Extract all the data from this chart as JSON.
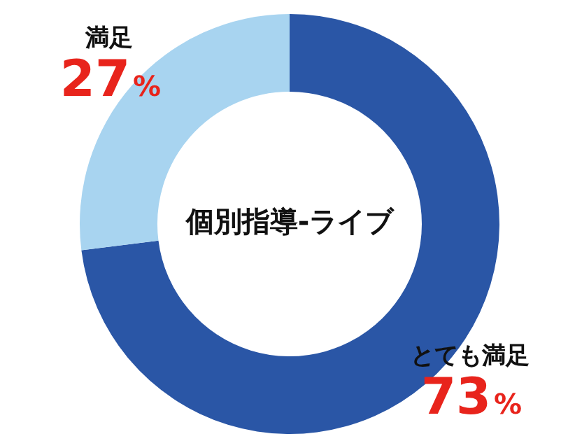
{
  "chart_data": {
    "type": "donut",
    "title": "個別指導-ライブ",
    "categories": [
      "とても満足",
      "満足"
    ],
    "values": [
      73,
      27
    ],
    "colors": [
      "#2a56a6",
      "#a8d4f0"
    ],
    "value_labels": [
      "73%",
      "27%"
    ],
    "legend": false
  }
}
